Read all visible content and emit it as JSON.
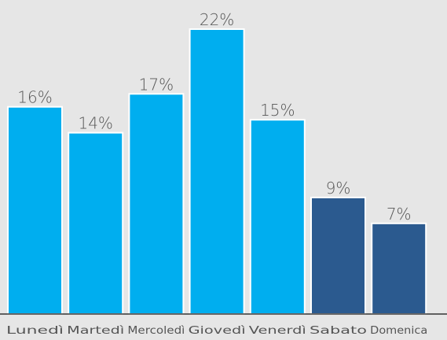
{
  "chart_data": {
    "type": "bar",
    "categories": [
      "Lunedì",
      "Martedì",
      "Mercoledì",
      "Giovedì",
      "Venerdì",
      "Sabato",
      "Domenica"
    ],
    "values": [
      16,
      14,
      17,
      22,
      15,
      9,
      7
    ],
    "value_labels": [
      "16%",
      "14%",
      "17%",
      "22%",
      "15%",
      "9%",
      "7%"
    ],
    "unit": "%",
    "ylim": [
      0,
      22
    ],
    "grid": false,
    "title": "",
    "xlabel": "",
    "ylabel": "",
    "colors": {
      "weekday": "#00aeef",
      "weekend": "#2b5a8f",
      "background": "#e6e6e6",
      "axis": "#333333"
    },
    "bar_color_keys": [
      "weekday",
      "weekday",
      "weekday",
      "weekday",
      "weekday",
      "weekend",
      "weekend"
    ]
  }
}
